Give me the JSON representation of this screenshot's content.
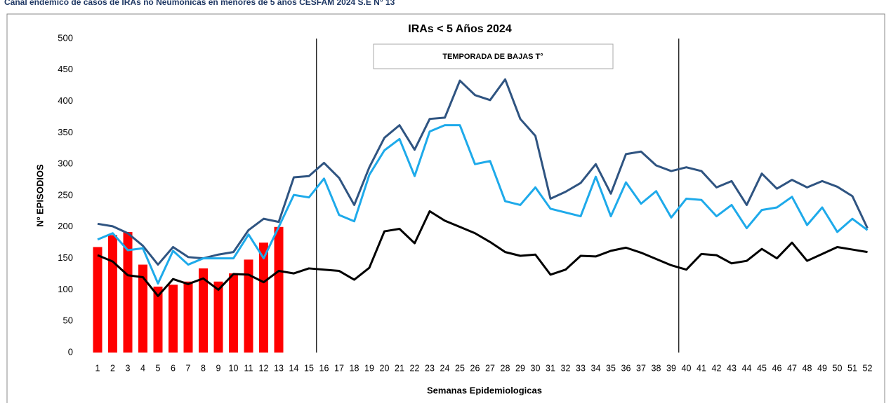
{
  "header": "Canal endémico de casos de IRAs no Neumonicas en menores de 5 años CESFAM 2024 S.E N° 13",
  "chart_data": {
    "type": "bar-line",
    "title": "IRAs < 5 Años 2024",
    "x_label": "Semanas Epidemiologicas",
    "y_label": "Nº  EPISODIOS",
    "categories": [
      "1",
      "2",
      "3",
      "4",
      "5",
      "6",
      "7",
      "8",
      "9",
      "10",
      "11",
      "12",
      "13",
      "14",
      "15",
      "16",
      "17",
      "18",
      "19",
      "20",
      "21",
      "22",
      "23",
      "24",
      "25",
      "26",
      "27",
      "28",
      "29",
      "30",
      "31",
      "32",
      "33",
      "34",
      "35",
      "36",
      "37",
      "38",
      "39",
      "40",
      "41",
      "42",
      "43",
      "44",
      "45",
      "46",
      "47",
      "48",
      "49",
      "50",
      "51",
      "52"
    ],
    "ylim": [
      0,
      500
    ],
    "yticks": [
      0,
      50,
      100,
      150,
      200,
      250,
      300,
      350,
      400,
      450,
      500
    ],
    "bars": {
      "color": "#ff0000",
      "values": [
        168,
        187,
        192,
        140,
        105,
        108,
        113,
        134,
        113,
        126,
        148,
        175,
        200,
        null,
        null,
        null,
        null,
        null,
        null,
        null,
        null,
        null,
        null,
        null,
        null,
        null,
        null,
        null,
        null,
        null,
        null,
        null,
        null,
        null,
        null,
        null,
        null,
        null,
        null,
        null,
        null,
        null,
        null,
        null,
        null,
        null,
        null,
        null,
        null,
        null,
        null,
        null
      ]
    },
    "series": [
      {
        "color": "#2f5481",
        "values": [
          205,
          201,
          190,
          170,
          140,
          168,
          152,
          150,
          156,
          160,
          195,
          213,
          208,
          279,
          281,
          302,
          278,
          235,
          295,
          342,
          362,
          323,
          372,
          374,
          433,
          410,
          402,
          435,
          372,
          345,
          245,
          256,
          270,
          300,
          253,
          316,
          320,
          298,
          289,
          295,
          289,
          263,
          273,
          235,
          285,
          261,
          275,
          263,
          273,
          264,
          249,
          198
        ]
      },
      {
        "color": "#1eaaea",
        "values": [
          180,
          190,
          163,
          166,
          110,
          162,
          140,
          150,
          150,
          150,
          188,
          150,
          200,
          251,
          247,
          277,
          219,
          209,
          283,
          322,
          340,
          281,
          352,
          362,
          362,
          300,
          305,
          241,
          235,
          263,
          229,
          223,
          217,
          280,
          217,
          271,
          237,
          257,
          215,
          245,
          243,
          217,
          235,
          198,
          227,
          231,
          248,
          203,
          231,
          192,
          213,
          195
        ]
      },
      {
        "color": "#000000",
        "values": [
          155,
          145,
          123,
          120,
          90,
          117,
          109,
          118,
          100,
          125,
          124,
          112,
          130,
          126,
          134,
          132,
          130,
          116,
          135,
          193,
          197,
          174,
          225,
          210,
          200,
          190,
          176,
          160,
          154,
          156,
          124,
          132,
          154,
          153,
          162,
          167,
          159,
          149,
          139,
          132,
          157,
          155,
          142,
          146,
          165,
          150,
          175,
          146,
          157,
          168,
          164,
          160
        ]
      }
    ],
    "annotation": {
      "text": "TEMPORADA DE BAJAS T°",
      "bounds": [
        "16",
        "40"
      ]
    }
  }
}
